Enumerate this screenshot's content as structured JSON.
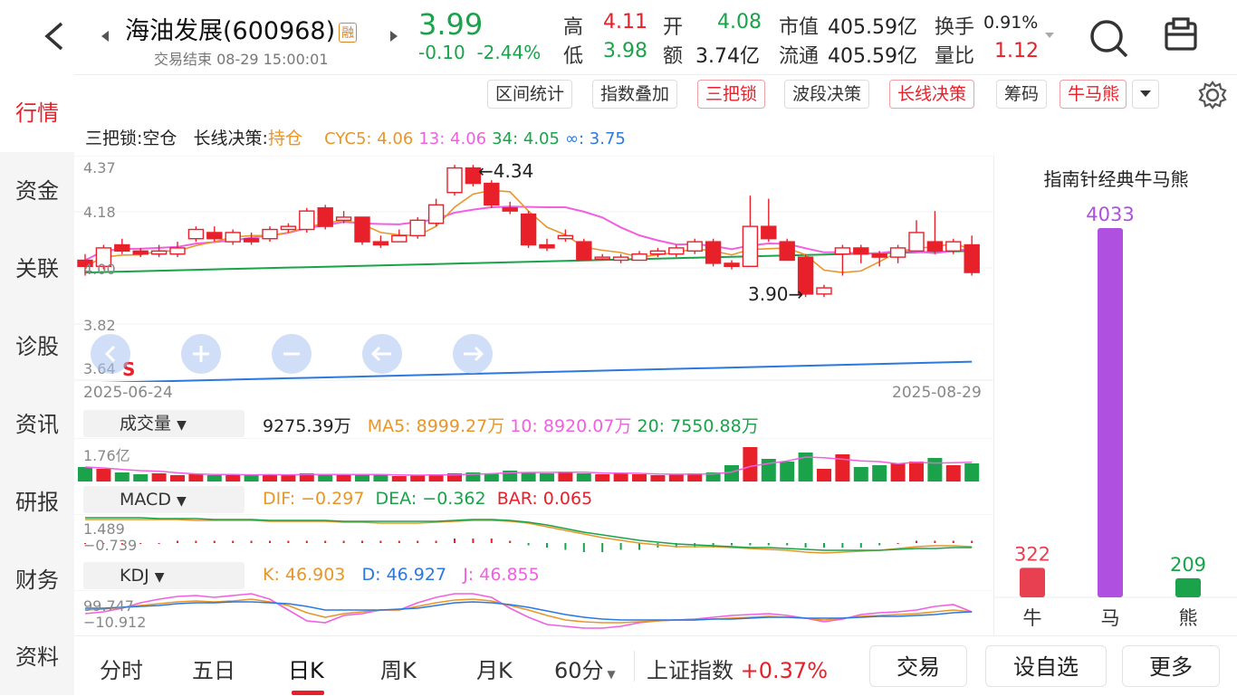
{
  "header": {
    "back_icon": "chevron-left-icon",
    "stock_name": "海油发展(600968)",
    "margin_badge": "融",
    "status": "交易结束 08-29 15:00:01",
    "price": "3.99",
    "change": "-0.10",
    "change_pct": "-2.44%",
    "quote": {
      "high_label": "高",
      "high": "4.11",
      "open_label": "开",
      "open": "4.08",
      "mktcap_label": "市值",
      "mktcap": "405.59亿",
      "turnover_label": "换手",
      "turnover": "0.91%",
      "low_label": "低",
      "low": "3.98",
      "amount_label": "额",
      "amount": "3.74亿",
      "float_label": "流通",
      "float": "405.59亿",
      "volratio_label": "量比",
      "volratio": "1.12"
    }
  },
  "leftnav": [
    "行情",
    "资金",
    "关联",
    "诊股",
    "资讯",
    "研报",
    "财务",
    "资料"
  ],
  "toolbar": [
    "区间统计",
    "指数叠加",
    "三把锁",
    "波段决策",
    "长线决策",
    "筹码",
    "牛马熊"
  ],
  "legend": {
    "lock_label": "三把锁:",
    "lock_value": "空仓",
    "long_label": "长线决策:",
    "long_value": "持仓",
    "cyc5": "CYC5: 4.06",
    "cyc13": "13: 4.06",
    "cyc34": "34: 4.05",
    "cycinf": "∞: 3.75"
  },
  "colors": {
    "up": "#e8202a",
    "down": "#1aa34a",
    "orange": "#e8962a",
    "pink": "#f060e0",
    "blue": "#2a78e0",
    "purple": "#b050e0"
  },
  "price_chart": {
    "y_ticks": [
      "4.37",
      "4.18",
      "4.00",
      "3.82",
      "3.64"
    ],
    "high_annot": "←4.34",
    "low_annot": "3.90→",
    "date_start": "2025-06-24",
    "date_end": "2025-08-29",
    "s_marker": "S"
  },
  "volume": {
    "selector": "成交量",
    "value": "9275.39万",
    "ma5": "MA5: 8999.27万",
    "ma10": "10: 8920.07万",
    "ma20": "20: 7550.88万",
    "axis_max": "1.76亿"
  },
  "macd": {
    "selector": "MACD",
    "dif": "DIF: −0.297",
    "dea": "DEA: −0.362",
    "bar": "BAR: 0.065",
    "axis_max": "1.489",
    "axis_min": "−0.739"
  },
  "kdj": {
    "selector": "KDJ",
    "k": "K: 46.903",
    "d": "D: 46.927",
    "j": "J: 46.855",
    "axis_max": "99.747",
    "axis_min": "−10.912"
  },
  "chart_data": {
    "type": "bar",
    "title": "指南针经典牛马熊",
    "categories": [
      "牛",
      "马",
      "熊"
    ],
    "values": [
      322,
      4033,
      209
    ],
    "colors": [
      "#e84050",
      "#b050e0",
      "#1aa34a"
    ]
  },
  "bottom": {
    "tabs": [
      "分时",
      "五日",
      "日K",
      "周K",
      "月K",
      "60分"
    ],
    "index_name": "上证指数",
    "index_change": "+0.37%",
    "trade": "交易",
    "watchlist": "设自选",
    "more": "更多"
  }
}
